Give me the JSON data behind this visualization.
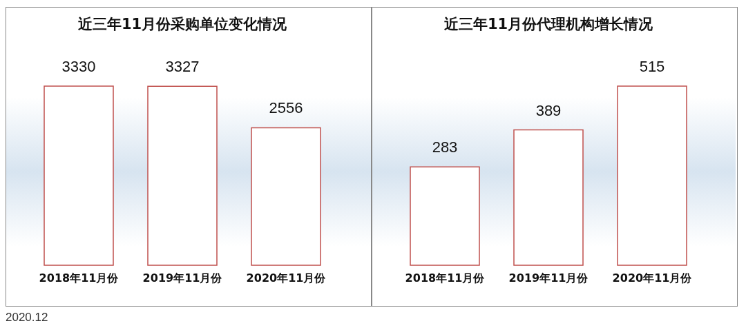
{
  "chart_data": [
    {
      "type": "bar",
      "title": "近三年11月份采购单位变化情况",
      "categories": [
        "2018年11月份",
        "2019年11月份",
        "2020年11月份"
      ],
      "values": [
        3330,
        3327,
        2556
      ],
      "color": "#c0504d",
      "tick_labels": "x",
      "data_labels": true,
      "annotations": [
        "2020.12"
      ]
    },
    {
      "type": "bar",
      "title": "近三年11月份代理机构增长情况",
      "categories": [
        "2018年11月份",
        "2019年11月份",
        "2020年11月份"
      ],
      "values": [
        283,
        389,
        515
      ],
      "color": "#c0504d",
      "tick_labels": "x",
      "data_labels": true
    }
  ]
}
